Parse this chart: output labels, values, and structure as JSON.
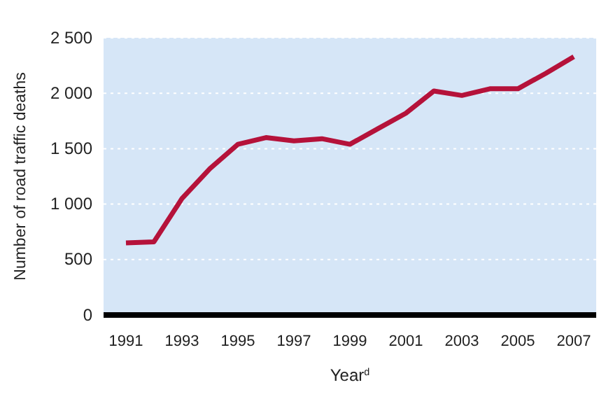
{
  "chart_data": {
    "type": "line",
    "xlabel": "Year$^{d}$",
    "ylabel": "Number of road traffic deaths",
    "x": [
      1991,
      1992,
      1993,
      1994,
      1995,
      1996,
      1997,
      1998,
      1999,
      2000,
      2001,
      2002,
      2003,
      2004,
      2005,
      2006,
      2007
    ],
    "series": [
      {
        "color": "#b5123a",
        "values": [
          650,
          660,
          1050,
          1320,
          1540,
          1600,
          1570,
          1590,
          1540,
          1680,
          1820,
          2020,
          1980,
          2040,
          2040,
          2180,
          2330
        ]
      }
    ],
    "xlim": [
      1990.2,
      2007.8
    ],
    "xticks": [
      1991,
      1993,
      1995,
      1997,
      1999,
      2001,
      2003,
      2005,
      2007
    ],
    "ylim": [
      0,
      2500
    ],
    "yticks": [
      {
        "value": 0,
        "label": "0"
      },
      {
        "value": 500,
        "label": "500"
      },
      {
        "value": 1000,
        "label": "1 000"
      },
      {
        "value": 1500,
        "label": "1 500"
      },
      {
        "value": 2000,
        "label": "2 000"
      },
      {
        "value": 2500,
        "label": "2 500"
      }
    ],
    "grid": "y",
    "marker": "none",
    "line_style": "solid"
  }
}
